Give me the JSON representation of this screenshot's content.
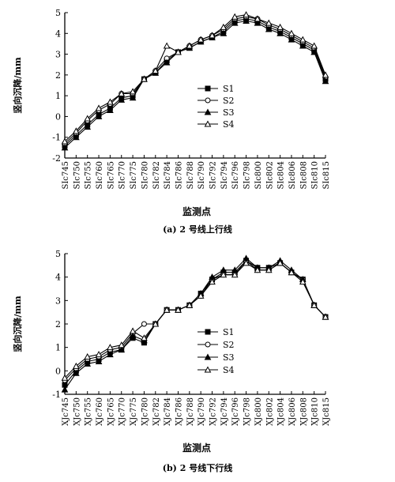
{
  "chart_data": [
    {
      "type": "line",
      "panel_caption": "(a) 2 号线上行线",
      "xlabel": "监测点",
      "ylabel": "竖向沉降/mm",
      "ylim": [
        -2,
        5
      ],
      "yticks": [
        -2,
        -1,
        0,
        1,
        2,
        3,
        4,
        5
      ],
      "grid": false,
      "legend_position": "center-right",
      "categories": [
        "SIc745",
        "SIc750",
        "SIc755",
        "SIc760",
        "SIc765",
        "SIc770",
        "SIc775",
        "SIc780",
        "SIc782",
        "SIc784",
        "SIc786",
        "SIc788",
        "SIc790",
        "SIc792",
        "SIc794",
        "SIc796",
        "SIc798",
        "SIc800",
        "SIc802",
        "SIc804",
        "SIc806",
        "SIc808",
        "SIc810",
        "SIc815"
      ],
      "series": [
        {
          "name": "S1",
          "marker": "square-filled",
          "values": [
            -1.4,
            -0.9,
            -0.4,
            0.1,
            0.4,
            0.9,
            1.0,
            1.8,
            2.1,
            2.7,
            3.1,
            3.3,
            3.6,
            3.8,
            4.1,
            4.6,
            4.7,
            4.6,
            4.3,
            4.1,
            3.8,
            3.5,
            3.2,
            1.8
          ]
        },
        {
          "name": "S2",
          "marker": "circle-open",
          "values": [
            -1.3,
            -0.8,
            -0.2,
            0.3,
            0.6,
            1.1,
            1.1,
            1.8,
            2.2,
            2.8,
            3.1,
            3.4,
            3.7,
            3.9,
            4.2,
            4.7,
            4.8,
            4.7,
            4.4,
            4.2,
            3.9,
            3.6,
            3.3,
            1.9
          ]
        },
        {
          "name": "S3",
          "marker": "triangle-filled",
          "values": [
            -1.5,
            -1.0,
            -0.5,
            0.0,
            0.3,
            0.8,
            0.9,
            1.8,
            2.1,
            2.6,
            3.1,
            3.3,
            3.6,
            3.8,
            4.0,
            4.5,
            4.6,
            4.5,
            4.2,
            4.0,
            3.7,
            3.4,
            3.1,
            1.7
          ]
        },
        {
          "name": "S4",
          "marker": "triangle-open",
          "values": [
            -1.2,
            -0.7,
            -0.1,
            0.4,
            0.7,
            1.1,
            1.2,
            1.8,
            2.2,
            3.4,
            3.1,
            3.4,
            3.7,
            3.9,
            4.3,
            4.8,
            4.9,
            4.7,
            4.5,
            4.3,
            4.0,
            3.7,
            3.4,
            2.0
          ]
        }
      ]
    },
    {
      "type": "line",
      "panel_caption": "(b) 2 号线下行线",
      "xlabel": "监测点",
      "ylabel": "竖向沉降/mm",
      "ylim": [
        -1,
        5
      ],
      "yticks": [
        -1,
        0,
        1,
        2,
        3,
        4,
        5
      ],
      "grid": false,
      "legend_position": "center-right",
      "categories": [
        "XJc745",
        "XJc750",
        "XJc755",
        "XJc760",
        "XJc765",
        "XJc770",
        "XJc775",
        "XJc780",
        "XJc782",
        "XJc784",
        "XJc786",
        "XJc788",
        "XJc790",
        "XJc792",
        "XJc794",
        "XJc796",
        "XJc798",
        "XJc800",
        "XJc802",
        "XJc804",
        "XJc806",
        "XJc808",
        "XJc810",
        "XJc815"
      ],
      "series": [
        {
          "name": "S1",
          "marker": "square-filled",
          "values": [
            -0.6,
            0.0,
            0.4,
            0.5,
            0.8,
            0.9,
            1.4,
            1.2,
            2.0,
            2.6,
            2.6,
            2.8,
            3.3,
            3.9,
            4.2,
            4.2,
            4.7,
            4.4,
            4.4,
            4.6,
            4.2,
            3.9,
            2.8,
            2.3
          ]
        },
        {
          "name": "S2",
          "marker": "circle-open",
          "values": [
            -0.4,
            0.1,
            0.5,
            0.6,
            0.9,
            1.0,
            1.6,
            2.0,
            2.0,
            2.6,
            2.6,
            2.8,
            3.2,
            3.9,
            4.1,
            4.1,
            4.7,
            4.3,
            4.3,
            4.6,
            4.2,
            3.9,
            2.8,
            2.3
          ]
        },
        {
          "name": "S3",
          "marker": "triangle-filled",
          "values": [
            -0.8,
            -0.1,
            0.3,
            0.4,
            0.7,
            0.9,
            1.5,
            1.3,
            2.0,
            2.6,
            2.6,
            2.8,
            3.3,
            4.0,
            4.3,
            4.3,
            4.8,
            4.4,
            4.4,
            4.7,
            4.3,
            3.9,
            2.8,
            2.3
          ]
        },
        {
          "name": "S4",
          "marker": "triangle-open",
          "values": [
            -0.3,
            0.2,
            0.6,
            0.7,
            1.0,
            1.1,
            1.7,
            1.4,
            2.0,
            2.6,
            2.6,
            2.8,
            3.2,
            3.8,
            4.1,
            4.1,
            4.6,
            4.3,
            4.3,
            4.6,
            4.2,
            3.8,
            2.8,
            2.3
          ]
        }
      ]
    }
  ]
}
